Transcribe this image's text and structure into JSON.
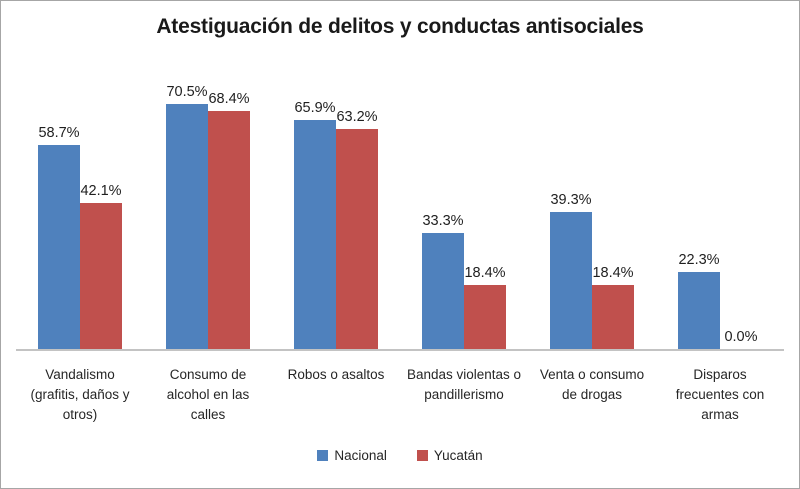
{
  "chart_data": {
    "type": "bar",
    "title": "Atestiguación de delitos y conductas antisociales",
    "categories": [
      "Vandalismo (grafitis, daños y otros)",
      "Consumo de alcohol en las calles",
      "Robos o asaltos",
      "Bandas violentas o pandillerismo",
      "Venta o consumo de drogas",
      "Disparos frecuentes con armas"
    ],
    "series": [
      {
        "name": "Nacional",
        "color": "#4F81BD",
        "values": [
          58.7,
          70.5,
          65.9,
          33.3,
          39.3,
          22.3
        ],
        "labels": [
          "58.7%",
          "70.5%",
          "65.9%",
          "33.3%",
          "39.3%",
          "22.3%"
        ]
      },
      {
        "name": "Yucatán",
        "color": "#C0504D",
        "values": [
          42.1,
          68.4,
          63.2,
          18.4,
          18.4,
          0.0
        ],
        "labels": [
          "42.1%",
          "68.4%",
          "63.2%",
          "18.4%",
          "18.4%",
          "0.0%"
        ]
      }
    ],
    "xlabel": "",
    "ylabel": "",
    "ylim": [
      0,
      80
    ],
    "value_suffix": "%",
    "grid": false,
    "legend_position": "bottom",
    "axis_line_color": "#C3C3C3",
    "frame_border_color": "#A6A6A6"
  }
}
